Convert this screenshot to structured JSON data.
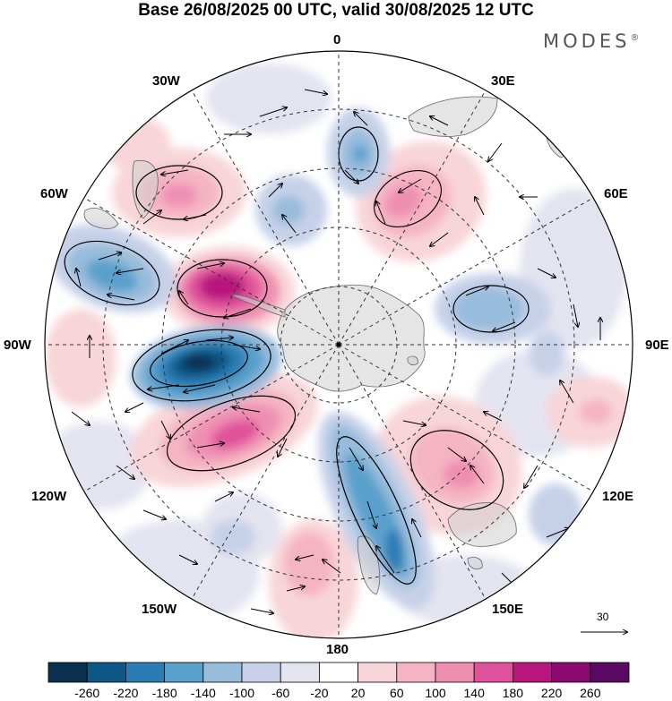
{
  "title": "Base 26/08/2025 00 UTC, valid 30/08/2025 12 UTC",
  "brand": "MODES",
  "brand_mark": "®",
  "longitude_labels": {
    "lon_0": "0",
    "lon_30e": "30E",
    "lon_60e": "60E",
    "lon_90e": "90E",
    "lon_120e": "120E",
    "lon_150e": "150E",
    "lon_180": "180",
    "lon_150w": "150W",
    "lon_120w": "120W",
    "lon_90w": "90W",
    "lon_60w": "60W",
    "lon_30w": "30W"
  },
  "reference_vector": {
    "label": "30"
  },
  "colorbar": {
    "ticks": [
      "-260",
      "-220",
      "-180",
      "-140",
      "-100",
      "-60",
      "-20",
      "20",
      "60",
      "100",
      "140",
      "180",
      "220",
      "260"
    ],
    "colors": [
      "#0a2f4f",
      "#0e5786",
      "#2a7db4",
      "#5aa0cc",
      "#98bcdc",
      "#c6d1e8",
      "#e4e4f1",
      "#ffffff",
      "#f8d5d8",
      "#f5b4c3",
      "#ee8fb2",
      "#e0529b",
      "#b8157e",
      "#8a0a72",
      "#5a0a62"
    ]
  },
  "anomalies": [
    {
      "name": "anomaly-low-90w",
      "value": -240
    },
    {
      "name": "anomaly-low-60w",
      "value": -150
    },
    {
      "name": "anomaly-high-75w",
      "value": 200
    },
    {
      "name": "anomaly-high-120w",
      "value": 170
    },
    {
      "name": "anomaly-high-40w",
      "value": 100
    },
    {
      "name": "anomaly-low-170e",
      "value": -160
    },
    {
      "name": "anomaly-low-10w",
      "value": -90
    },
    {
      "name": "anomaly-low-5e",
      "value": -110
    },
    {
      "name": "anomaly-high-40e",
      "value": 130
    },
    {
      "name": "anomaly-low-80e",
      "value": -110
    },
    {
      "name": "anomaly-high-120e",
      "value": 110
    },
    {
      "name": "anomaly-high-100w",
      "value": 60
    },
    {
      "name": "anomaly-low-155w",
      "value": -60
    },
    {
      "name": "anomaly-high-170w",
      "value": 70
    }
  ]
}
